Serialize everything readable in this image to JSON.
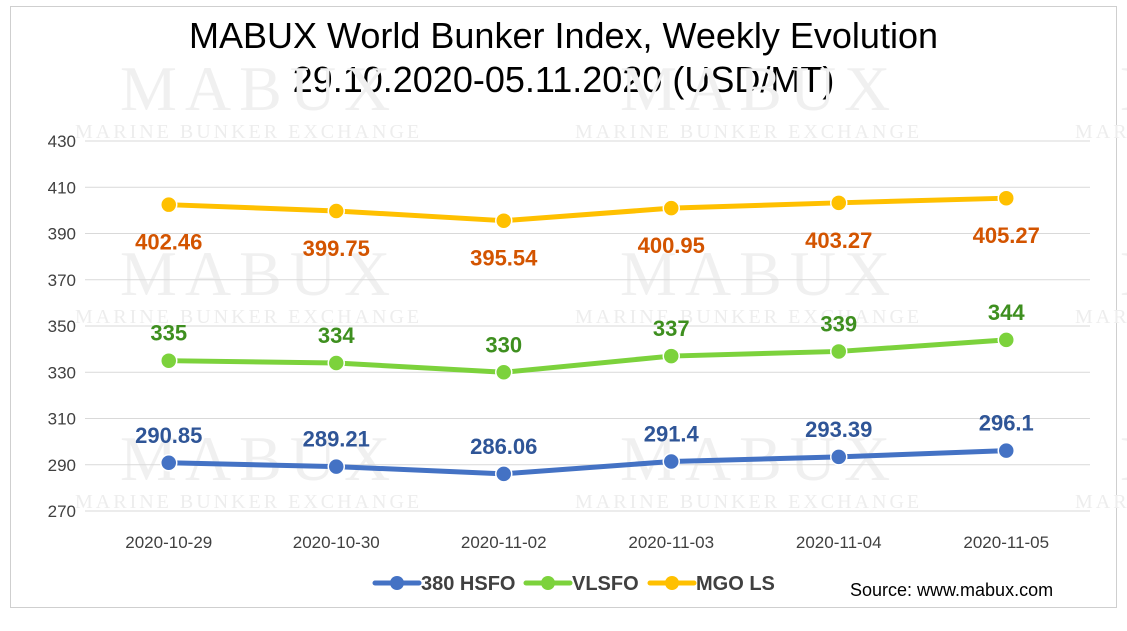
{
  "title_line1": "MABUX World Bunker Index, Weekly Evolution",
  "title_line2": "29.10.2020-05.11.2020 (USD/MT)",
  "source": "Source: www.mabux.com",
  "watermark": {
    "main": "MABUX",
    "sub": "MARINE BUNKER EXCHANGE"
  },
  "chart_data": {
    "type": "line",
    "categories": [
      "2020-10-29",
      "2020-10-30",
      "2020-11-02",
      "2020-11-03",
      "2020-11-04",
      "2020-11-05"
    ],
    "ylim": [
      270,
      430
    ],
    "yticks": [
      270,
      290,
      310,
      330,
      350,
      370,
      390,
      410,
      430
    ],
    "grid": true,
    "legend": "bottom",
    "series": [
      {
        "name": "380 HSFO",
        "color": "#4472C4",
        "label_color": "#2F5597",
        "values": [
          290.85,
          289.21,
          286.06,
          291.4,
          293.39,
          296.1
        ],
        "labels": [
          "290.85",
          "289.21",
          "286.06",
          "291.4",
          "293.39",
          "296.1"
        ]
      },
      {
        "name": "VLSFO",
        "color": "#7CD23C",
        "label_color": "#3E8F1F",
        "values": [
          335,
          334,
          330,
          337,
          339,
          344
        ],
        "labels": [
          "335",
          "334",
          "330",
          "337",
          "339",
          "344"
        ]
      },
      {
        "name": "MGO LS",
        "color": "#FFC000",
        "label_color": "#D35400",
        "values": [
          402.46,
          399.75,
          395.54,
          400.95,
          403.27,
          405.27
        ],
        "labels": [
          "402.46",
          "399.75",
          "395.54",
          "400.95",
          "403.27",
          "405.27"
        ]
      }
    ]
  }
}
